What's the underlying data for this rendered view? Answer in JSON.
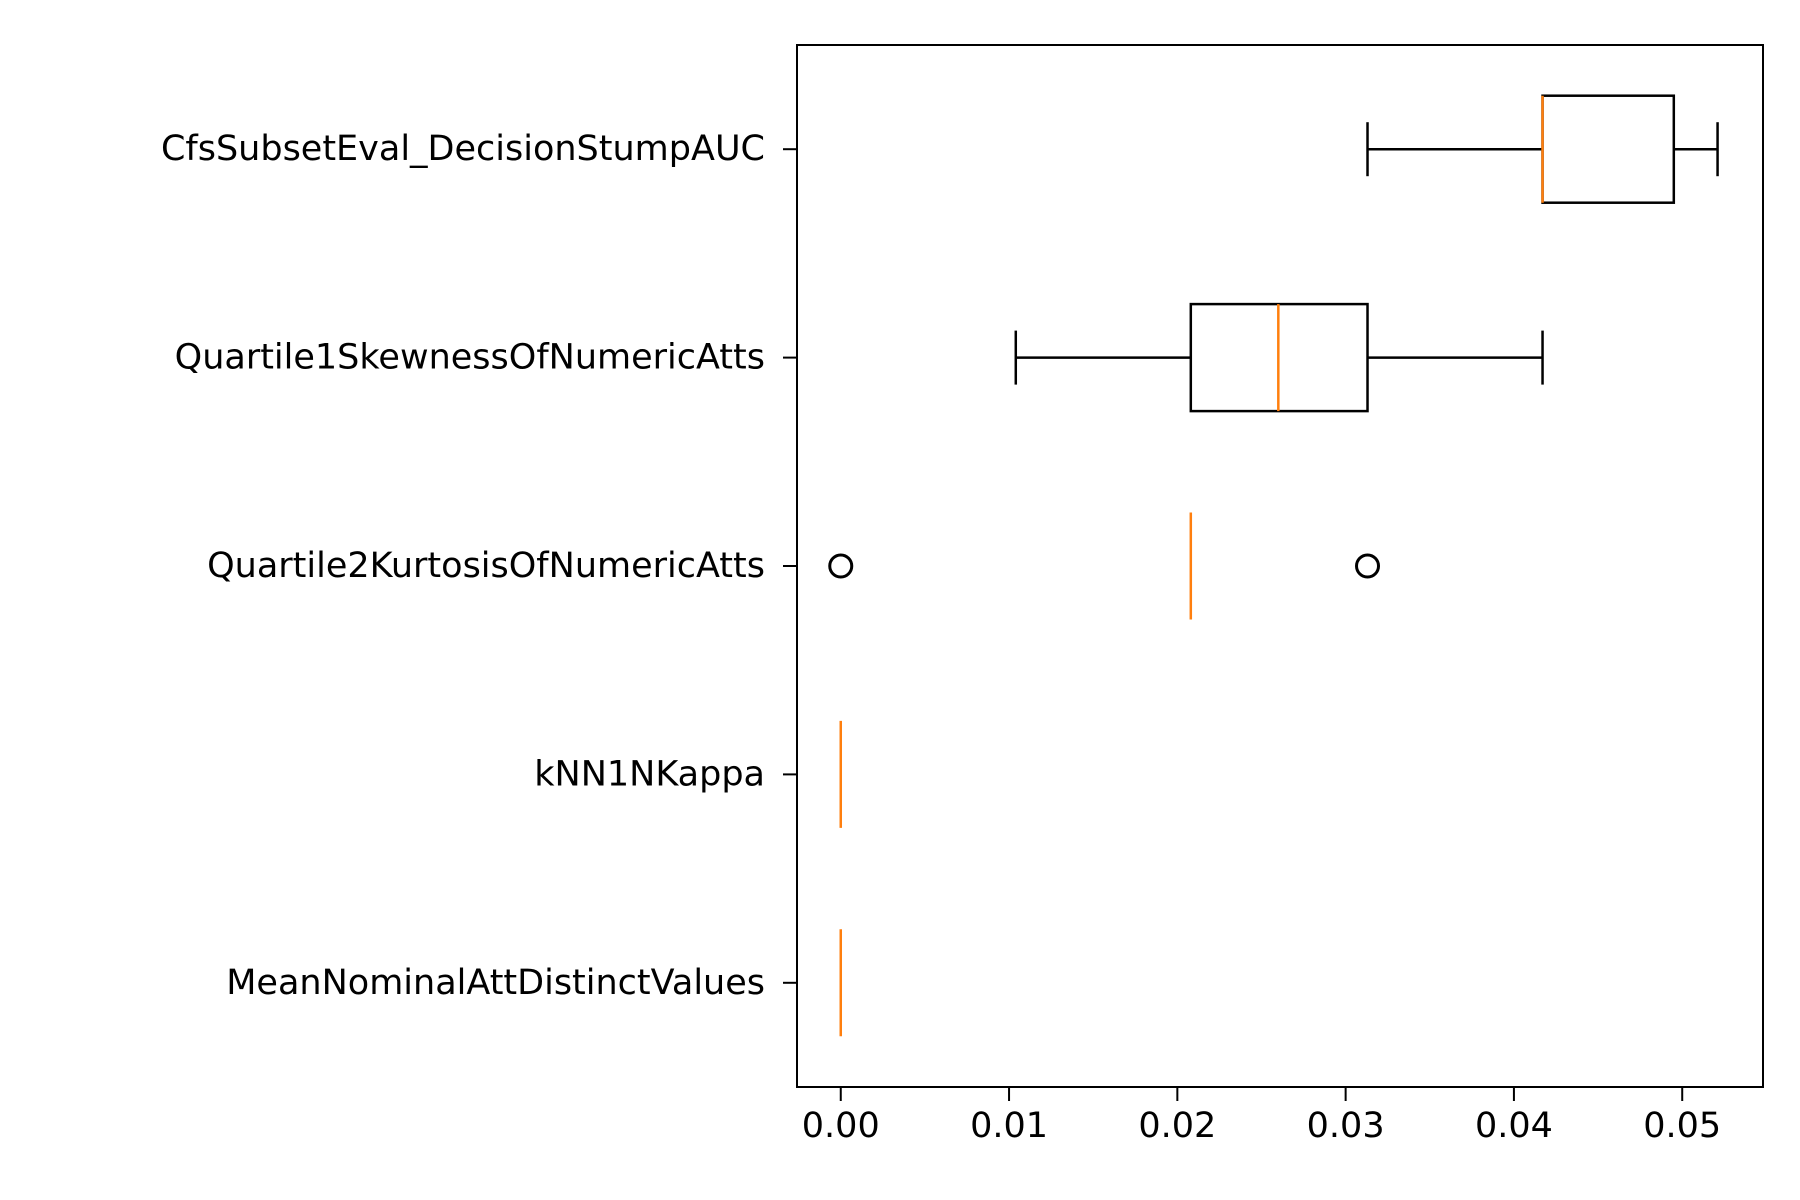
{
  "chart_data": {
    "type": "box",
    "orientation": "horizontal",
    "title": "",
    "xlabel": "",
    "ylabel": "",
    "xlim": [
      -0.0026,
      0.0548
    ],
    "x_ticks": [
      0.0,
      0.01,
      0.02,
      0.03,
      0.04,
      0.05
    ],
    "x_tick_labels": [
      "0.00",
      "0.01",
      "0.02",
      "0.03",
      "0.04",
      "0.05"
    ],
    "grid": false,
    "legend": "none",
    "colors": {
      "box": "#000000",
      "median": "#ff7f0e",
      "flier": "#000000"
    },
    "boxes": [
      {
        "label": "CfsSubsetEval_DecisionStumpAUC",
        "whislo": 0.0313,
        "q1": 0.0417,
        "med": 0.0417,
        "q3": 0.0495,
        "whishi": 0.0521,
        "fliers": []
      },
      {
        "label": "Quartile1SkewnessOfNumericAtts",
        "whislo": 0.0104,
        "q1": 0.0208,
        "med": 0.026,
        "q3": 0.0313,
        "whishi": 0.0417,
        "fliers": []
      },
      {
        "label": "Quartile2KurtosisOfNumericAtts",
        "whislo": 0.0208,
        "q1": 0.0208,
        "med": 0.0208,
        "q3": 0.0208,
        "whishi": 0.0208,
        "fliers": [
          0.0,
          0.0313
        ]
      },
      {
        "label": "kNN1NKappa",
        "whislo": 0.0,
        "q1": 0.0,
        "med": 0.0,
        "q3": 0.0,
        "whishi": 0.0,
        "fliers": []
      },
      {
        "label": "MeanNominalAttDistinctValues",
        "whislo": 0.0,
        "q1": 0.0,
        "med": 0.0,
        "q3": 0.0,
        "whishi": 0.0,
        "fliers": []
      }
    ]
  }
}
